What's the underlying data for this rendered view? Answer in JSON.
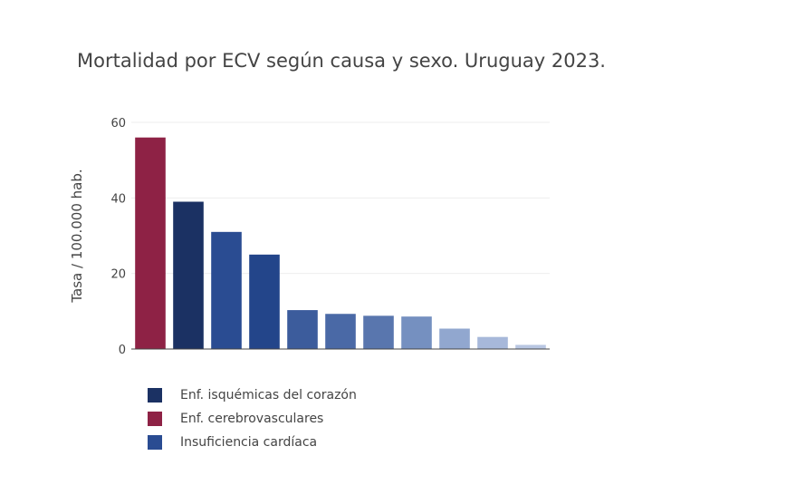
{
  "chart_data": {
    "type": "bar",
    "title": "Mortalidad por ECV según causa y sexo. Uruguay 2023.",
    "xlabel": "",
    "ylabel": "Tasa / 100.000 hab.",
    "ylim": [
      0,
      60
    ],
    "yticks": [
      0,
      20,
      40,
      60
    ],
    "grid": true,
    "legend_position": "bottom",
    "values": [
      56,
      39,
      31,
      25,
      10.3,
      9.3,
      8.8,
      8.6,
      5.4,
      3.2,
      1.1
    ],
    "colors": [
      "#8e2245",
      "#1b3163",
      "#2a4c92",
      "#23458a",
      "#3c5c9c",
      "#4a69a6",
      "#5976ae",
      "#7590c0",
      "#91a7cf",
      "#a7b8da",
      "#b8c6e2"
    ],
    "series": [
      {
        "name": "Enf. isquémicas del corazón",
        "color": "#1b3163"
      },
      {
        "name": "Enf. cerebrovasculares",
        "color": "#8e2245"
      },
      {
        "name": "Insuficiencia cardíaca",
        "color": "#2a4c92"
      }
    ]
  }
}
